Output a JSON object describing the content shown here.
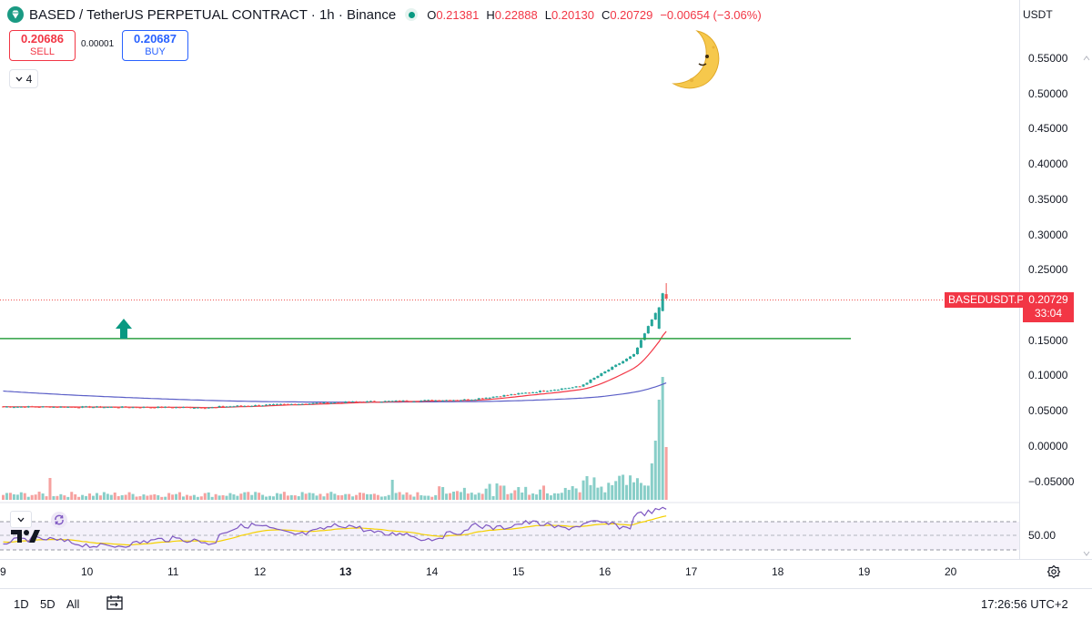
{
  "header": {
    "title": "BASED / TetherUS PERPETUAL CONTRACT · 1h · Binance",
    "ohlc": [
      {
        "label": "O",
        "value": "0.21381"
      },
      {
        "label": "H",
        "value": "0.22888"
      },
      {
        "label": "L",
        "value": "0.20130"
      },
      {
        "label": "C",
        "value": "0.20729"
      }
    ],
    "change": "−0.00654 (−3.06%)"
  },
  "trade": {
    "sell_price": "0.20686",
    "sell_label": "SELL",
    "spread": "0.00001",
    "buy_price": "0.20687",
    "buy_label": "BUY"
  },
  "indicators_count": "4",
  "price_axis": {
    "currency": "USDT",
    "ticks": [
      "0.55000",
      "0.50000",
      "0.45000",
      "0.40000",
      "0.35000",
      "0.30000",
      "0.25000",
      "0.15000",
      "0.10000",
      "0.05000",
      "0.00000",
      "−0.05000"
    ],
    "last_symbol": "BASEDUSDT.P",
    "last_price": "0.20729",
    "countdown": "33:04",
    "rsi_level": "50.00"
  },
  "time_axis": {
    "ticks": [
      {
        "label": "9",
        "bold": false
      },
      {
        "label": "10",
        "bold": false
      },
      {
        "label": "11",
        "bold": false
      },
      {
        "label": "12",
        "bold": false
      },
      {
        "label": "13",
        "bold": true
      },
      {
        "label": "14",
        "bold": false
      },
      {
        "label": "15",
        "bold": false
      },
      {
        "label": "16",
        "bold": false
      },
      {
        "label": "17",
        "bold": false
      },
      {
        "label": "18",
        "bold": false
      },
      {
        "label": "19",
        "bold": false
      },
      {
        "label": "20",
        "bold": false
      }
    ]
  },
  "bottom": {
    "ranges": [
      "1D",
      "5D",
      "All"
    ],
    "clock": "17:26:56 UTC+2"
  },
  "drawings": {
    "horizontal_line_price": 0.151,
    "arrow_color": "#089981"
  },
  "colors": {
    "up": "#26a69a",
    "down": "#ef5350",
    "ma_fast": "#f23645",
    "ma_slow": "#5b5fc7",
    "rsi": "#7e57c2",
    "rsi_ma": "#f5d000",
    "hline": "#2ea043"
  },
  "icons": {
    "symbol_logo": "diamond-logo-icon",
    "moon": "crescent-moon-icon",
    "settings": "gear-icon",
    "compare": "calendar-range-icon"
  }
}
